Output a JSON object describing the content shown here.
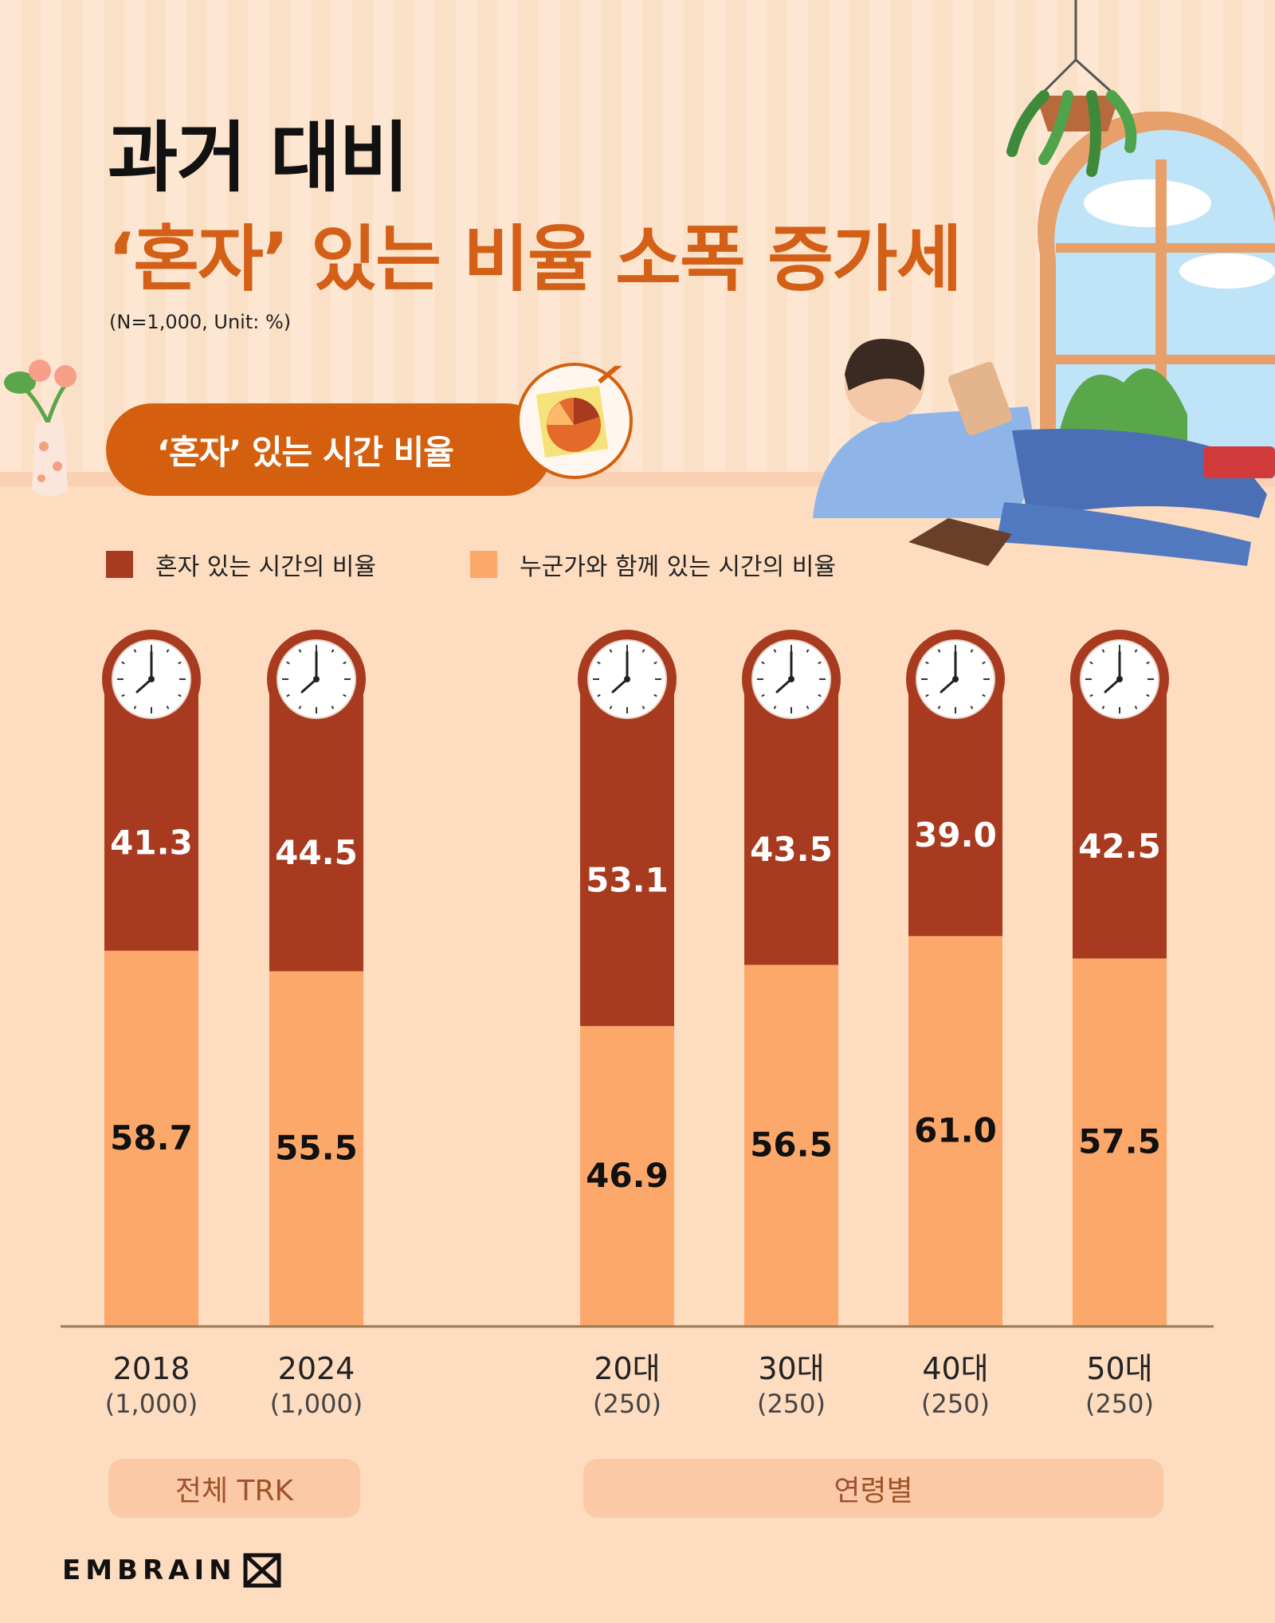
{
  "header": {
    "title_line1": "과거 대비",
    "title_line2": "‘혼자’ 있는 비율  소폭 증가세",
    "sample_note": "(N=1,000,  Unit: %)",
    "section_label": "‘혼자’ 있는 시간 비율"
  },
  "legend": {
    "alone": "혼자 있는 시간의 비율",
    "together": "누군가와 함께 있는 시간의 비율"
  },
  "colors": {
    "alone": "#a83a1f",
    "together": "#fca86b",
    "accent": "#d45f16",
    "clock_ring": "#a83a1f"
  },
  "groups": {
    "total": "전체 TRK",
    "age": "연령별"
  },
  "brand": "EMBRAIN",
  "chart_data": {
    "type": "bar",
    "stacked": true,
    "ylim": [
      0,
      100
    ],
    "categories": [
      "2018",
      "2024",
      "20대",
      "30대",
      "40대",
      "50대"
    ],
    "category_notes": [
      "(1,000)",
      "(1,000)",
      "(250)",
      "(250)",
      "(250)",
      "(250)"
    ],
    "series": [
      {
        "name": "혼자 있는 시간의 비율",
        "values": [
          41.3,
          44.5,
          53.1,
          43.5,
          39.0,
          42.5
        ],
        "labels": [
          "41.3",
          "44.5",
          "53.1",
          "43.5",
          "39.0",
          "42.5"
        ]
      },
      {
        "name": "누군가와 함께 있는 시간의 비율",
        "values": [
          58.7,
          55.5,
          46.9,
          56.5,
          61.0,
          57.5
        ],
        "labels": [
          "58.7",
          "55.5",
          "46.9",
          "56.5",
          "61.0",
          "57.5"
        ]
      }
    ],
    "grid": false,
    "legend_position": "top-left"
  }
}
